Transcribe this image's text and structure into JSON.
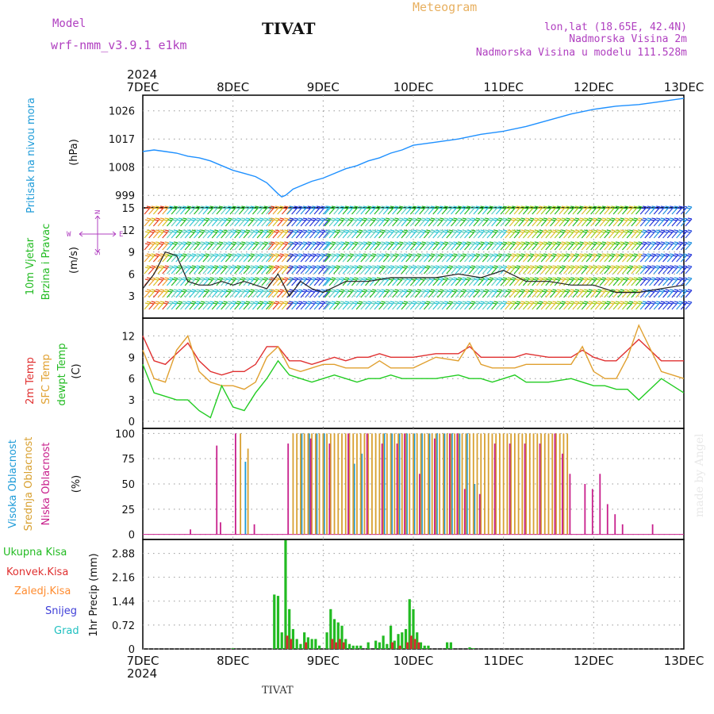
{
  "header": {
    "model_label": "Model",
    "model_name": "wrf-nmm_v3.9.1 e1km",
    "station": "TIVAT",
    "title": "Meteogram",
    "lonlat": "lon,lat (18.65E, 42.4N)",
    "elevation": "Nadmorska Visina 2m",
    "model_elevation": "Nadmorska Visina u modelu 111.528m",
    "footer_station": "TIVAT",
    "watermark": "made by Angel"
  },
  "colors": {
    "pressure": "#1e90ff",
    "t2m": "#e03030",
    "sfc": "#e0a030",
    "dew": "#22cc22",
    "high": "#1e9bd8",
    "mid": "#d8a030",
    "low": "#c8208c",
    "total": "#22bb22",
    "conv": "#d03030",
    "frozen": "#ff8c30",
    "snow": "#4040d8",
    "grad": "#20c0c0",
    "purple_text": "#b040c0",
    "title_orange": "#e8b060"
  },
  "time_axis": {
    "year": "2024",
    "days": [
      "7DEC",
      "8DEC",
      "9DEC",
      "10DEC",
      "11DEC",
      "12DEC",
      "13DEC"
    ]
  },
  "panel_labels": {
    "pressure": [
      "Pritisak na nivou mora",
      "(hPa)"
    ],
    "wind": [
      "10m Vjetar",
      "Brzina i Pravac",
      "(m/s)"
    ],
    "compass": {
      "w": "W",
      "e": "E",
      "s": "S",
      "n": "N"
    },
    "temp": [
      "2m Temp",
      "SFC Temp",
      "dewpt Temp",
      "(C)"
    ],
    "cloud": [
      "Visoka Oblacnost",
      "Srednja Oblacnost",
      "Niska Oblacnost",
      "(%)"
    ],
    "precip": [
      "Ukupna Kisa",
      "Konvek.Kisa",
      "Zaledj.Kisa",
      "Snijeg",
      "Grad",
      "1hr Precip (mm)"
    ]
  },
  "chart_data": [
    {
      "type": "line",
      "title": "",
      "ylabel": "Pritisak na nivou mora (hPa)",
      "yticks": [
        "999",
        "1008",
        "1017",
        "1026"
      ],
      "ylim": [
        995,
        1031
      ],
      "x_unit": "hours from 7DEC 00",
      "series": [
        {
          "name": "Pritisak na nivou mora",
          "x": [
            0,
            3,
            6,
            9,
            12,
            15,
            18,
            21,
            24,
            27,
            30,
            33,
            36,
            37,
            38,
            39,
            40,
            41,
            42,
            45,
            48,
            51,
            54,
            57,
            60,
            63,
            66,
            69,
            72,
            78,
            84,
            90,
            96,
            102,
            108,
            114,
            120,
            126,
            132,
            138,
            144
          ],
          "values": [
            1013,
            1013.5,
            1013,
            1012.5,
            1011.5,
            1011,
            1010,
            1008.5,
            1007,
            1006,
            1005,
            1003,
            999.5,
            998.5,
            999,
            1000,
            1001,
            1001.5,
            1002,
            1003.5,
            1004.5,
            1006,
            1007.5,
            1008.5,
            1010,
            1011,
            1012.5,
            1013.5,
            1015,
            1016,
            1017,
            1018.5,
            1019.5,
            1021,
            1023,
            1025,
            1026.5,
            1027.5,
            1028,
            1029,
            1030
          ]
        }
      ]
    },
    {
      "type": "line",
      "ylabel": "10m Vjetar Brzina i Pravac (m/s)",
      "yticks": [
        "3",
        "6",
        "9",
        "12",
        "15"
      ],
      "ylim": [
        0,
        15
      ],
      "series": [
        {
          "name": "Brzina",
          "x": [
            0,
            3,
            6,
            9,
            12,
            15,
            18,
            21,
            24,
            27,
            30,
            33,
            36,
            39,
            42,
            45,
            48,
            54,
            60,
            66,
            72,
            78,
            84,
            90,
            96,
            102,
            108,
            114,
            120,
            126,
            132,
            138,
            144
          ],
          "values": [
            4,
            6,
            9,
            8.5,
            5,
            4.5,
            4.5,
            5,
            4.5,
            5,
            4.5,
            4,
            6,
            3,
            5,
            4,
            3.5,
            5,
            5,
            5.5,
            5.5,
            5.5,
            6,
            5.5,
            6.5,
            5,
            5,
            4.5,
            4.5,
            3.5,
            3.5,
            4,
            4.5
          ]
        }
      ],
      "band_speeds": [
        {
          "from": 0,
          "to": 6,
          "speed": "high"
        },
        {
          "from": 6,
          "to": 33,
          "speed": "medium"
        },
        {
          "from": 33,
          "to": 38,
          "speed": "high"
        },
        {
          "from": 38,
          "to": 48,
          "speed": "low"
        },
        {
          "from": 48,
          "to": 96,
          "speed": "medium"
        },
        {
          "from": 96,
          "to": 132,
          "speed": "mixed"
        },
        {
          "from": 132,
          "to": 144,
          "speed": "low"
        }
      ]
    },
    {
      "type": "line",
      "ylabel": "2m Temp / SFC Temp / dewpt Temp (C)",
      "yticks": [
        "0",
        "3",
        "6",
        "9",
        "12"
      ],
      "ylim": [
        -1,
        14.5
      ],
      "series": [
        {
          "name": "2m Temp",
          "x": [
            0,
            3,
            6,
            9,
            12,
            15,
            18,
            21,
            24,
            27,
            30,
            33,
            36,
            39,
            42,
            45,
            48,
            51,
            54,
            57,
            60,
            63,
            66,
            69,
            72,
            78,
            84,
            87,
            90,
            93,
            96,
            99,
            102,
            108,
            114,
            117,
            120,
            123,
            126,
            129,
            132,
            138,
            144
          ],
          "values": [
            12,
            8.5,
            8,
            9.5,
            11,
            8.5,
            7,
            6.5,
            7,
            7,
            8,
            10.5,
            10.5,
            8.5,
            8.5,
            8,
            8.5,
            9,
            8.5,
            9,
            9,
            9.5,
            9,
            9,
            9,
            9.5,
            9.5,
            10.5,
            9,
            9,
            9,
            9,
            9.5,
            9,
            9,
            10,
            9,
            8.5,
            8.5,
            10,
            11.5,
            8.5,
            8.5
          ]
        },
        {
          "name": "SFC Temp",
          "x": [
            0,
            3,
            6,
            9,
            12,
            15,
            18,
            21,
            24,
            27,
            30,
            33,
            36,
            39,
            42,
            45,
            48,
            51,
            54,
            57,
            60,
            63,
            66,
            69,
            72,
            78,
            84,
            87,
            90,
            93,
            96,
            99,
            102,
            108,
            114,
            117,
            120,
            123,
            126,
            129,
            132,
            138,
            144
          ],
          "values": [
            10,
            6,
            5.5,
            10,
            12,
            7,
            5.5,
            5,
            5,
            4.5,
            5.5,
            9,
            10.5,
            7.5,
            7,
            7.5,
            8,
            8,
            7.5,
            7.5,
            7.5,
            8.5,
            7.5,
            7.5,
            7.5,
            9,
            8.5,
            11,
            8,
            7.5,
            7.5,
            7.5,
            8,
            8,
            8,
            10.5,
            7,
            6,
            6,
            9,
            13.5,
            7,
            6
          ]
        },
        {
          "name": "dewpt Temp",
          "x": [
            0,
            3,
            6,
            9,
            12,
            15,
            18,
            21,
            24,
            27,
            30,
            33,
            36,
            39,
            42,
            45,
            48,
            51,
            54,
            57,
            60,
            63,
            66,
            69,
            72,
            78,
            84,
            87,
            90,
            93,
            96,
            99,
            102,
            108,
            114,
            117,
            120,
            123,
            126,
            129,
            132,
            138,
            144
          ],
          "values": [
            8,
            4,
            3.5,
            3,
            3,
            1.5,
            0.5,
            5,
            2,
            1.5,
            4,
            6,
            8.5,
            6.5,
            6,
            5.5,
            6,
            6.5,
            6,
            5.5,
            6,
            6,
            6.5,
            6,
            6,
            6,
            6.5,
            6,
            6,
            5.5,
            6,
            6.5,
            5.5,
            5.5,
            6,
            5.5,
            5,
            5,
            4.5,
            4.5,
            3,
            6,
            4
          ]
        }
      ]
    },
    {
      "type": "bar",
      "ylabel": "Oblacnost (%)",
      "yticks": [
        "0",
        "25",
        "50",
        "75",
        "100"
      ],
      "ylim": [
        -5,
        105
      ],
      "series": [
        {
          "name": "Visoka Oblacnost",
          "x": [
            27,
            42,
            44,
            46,
            48,
            56,
            58,
            64,
            66,
            68,
            70,
            72,
            74,
            76,
            78,
            80,
            82,
            84,
            86,
            88
          ],
          "values": [
            72,
            100,
            100,
            100,
            100,
            70,
            80,
            100,
            100,
            100,
            100,
            100,
            100,
            100,
            100,
            100,
            100,
            100,
            100,
            50
          ]
        },
        {
          "name": "Srednja Oblacnost",
          "x": [
            26,
            28,
            40,
            41,
            42,
            43,
            44,
            45,
            46,
            47,
            48,
            49,
            50,
            51,
            52,
            53,
            54,
            55,
            56,
            57,
            58,
            59,
            60,
            61,
            62,
            63,
            64,
            65,
            66,
            67,
            68,
            69,
            70,
            71,
            72,
            73,
            74,
            75,
            76,
            77,
            78,
            79,
            80,
            81,
            82,
            83,
            84,
            85,
            86,
            87,
            88,
            89,
            90,
            91,
            92,
            93,
            94,
            95,
            96,
            97,
            98,
            99,
            100,
            101,
            102,
            103,
            104,
            105,
            106,
            107,
            108,
            109,
            110,
            111,
            112,
            113
          ],
          "values": [
            100,
            85,
            100,
            100,
            100,
            100,
            100,
            100,
            100,
            100,
            100,
            100,
            100,
            100,
            100,
            100,
            100,
            100,
            100,
            100,
            100,
            100,
            100,
            100,
            100,
            100,
            100,
            100,
            100,
            100,
            100,
            100,
            100,
            100,
            100,
            100,
            100,
            100,
            100,
            100,
            100,
            100,
            100,
            100,
            100,
            100,
            100,
            100,
            100,
            100,
            100,
            100,
            100,
            100,
            100,
            100,
            100,
            100,
            100,
            100,
            100,
            100,
            100,
            100,
            100,
            100,
            100,
            100,
            100,
            100,
            100,
            100,
            100,
            100,
            100,
            100
          ]
        },
        {
          "name": "Niska Oblacnost",
          "x": [
            13,
            20,
            21,
            25,
            30,
            39,
            45,
            50,
            55,
            60,
            64,
            68,
            70,
            74,
            78,
            82,
            84,
            86,
            90,
            94,
            98,
            102,
            106,
            110,
            112,
            114,
            118,
            120,
            122,
            124,
            126,
            128,
            136
          ],
          "values": [
            5,
            88,
            12,
            100,
            10,
            90,
            95,
            90,
            100,
            100,
            90,
            90,
            100,
            60,
            95,
            100,
            100,
            45,
            40,
            90,
            90,
            90,
            90,
            100,
            80,
            60,
            50,
            45,
            60,
            30,
            20,
            10,
            10
          ]
        }
      ]
    },
    {
      "type": "bar",
      "ylabel": "1hr Precip (mm)",
      "yticks": [
        "0",
        "0.72",
        "1.44",
        "2.16",
        "2.88"
      ],
      "ylim": [
        0,
        3.3
      ],
      "series": [
        {
          "name": "Ukupna Kisa",
          "x": [
            24,
            35,
            36,
            37,
            38,
            39,
            40,
            41,
            42,
            43,
            44,
            45,
            46,
            47,
            49,
            50,
            51,
            52,
            53,
            54,
            55,
            56,
            57,
            58,
            60,
            62,
            63,
            64,
            65,
            66,
            67,
            68,
            69,
            70,
            71,
            72,
            73,
            74,
            75,
            76,
            81,
            82,
            87,
            88
          ],
          "values": [
            0.02,
            1.64,
            1.6,
            0.5,
            3.4,
            1.2,
            0.6,
            0.3,
            0.15,
            0.5,
            0.35,
            0.3,
            0.3,
            0.1,
            0.5,
            1.2,
            0.9,
            0.8,
            0.7,
            0.3,
            0.15,
            0.1,
            0.1,
            0.1,
            0.2,
            0.25,
            0.2,
            0.4,
            0.15,
            0.7,
            0.25,
            0.45,
            0.5,
            0.6,
            1.5,
            1.2,
            0.5,
            0.2,
            0.1,
            0.1,
            0.2,
            0.2,
            0.05,
            0.02
          ]
        },
        {
          "name": "Konvek.Kisa",
          "x": [
            38,
            39,
            43,
            50,
            51,
            52,
            53,
            66,
            68,
            70,
            71,
            72,
            73
          ],
          "values": [
            0.4,
            0.3,
            0.2,
            0.3,
            0.2,
            0.3,
            0.2,
            0.2,
            0.1,
            0.2,
            0.4,
            0.3,
            0.2
          ]
        }
      ]
    }
  ]
}
